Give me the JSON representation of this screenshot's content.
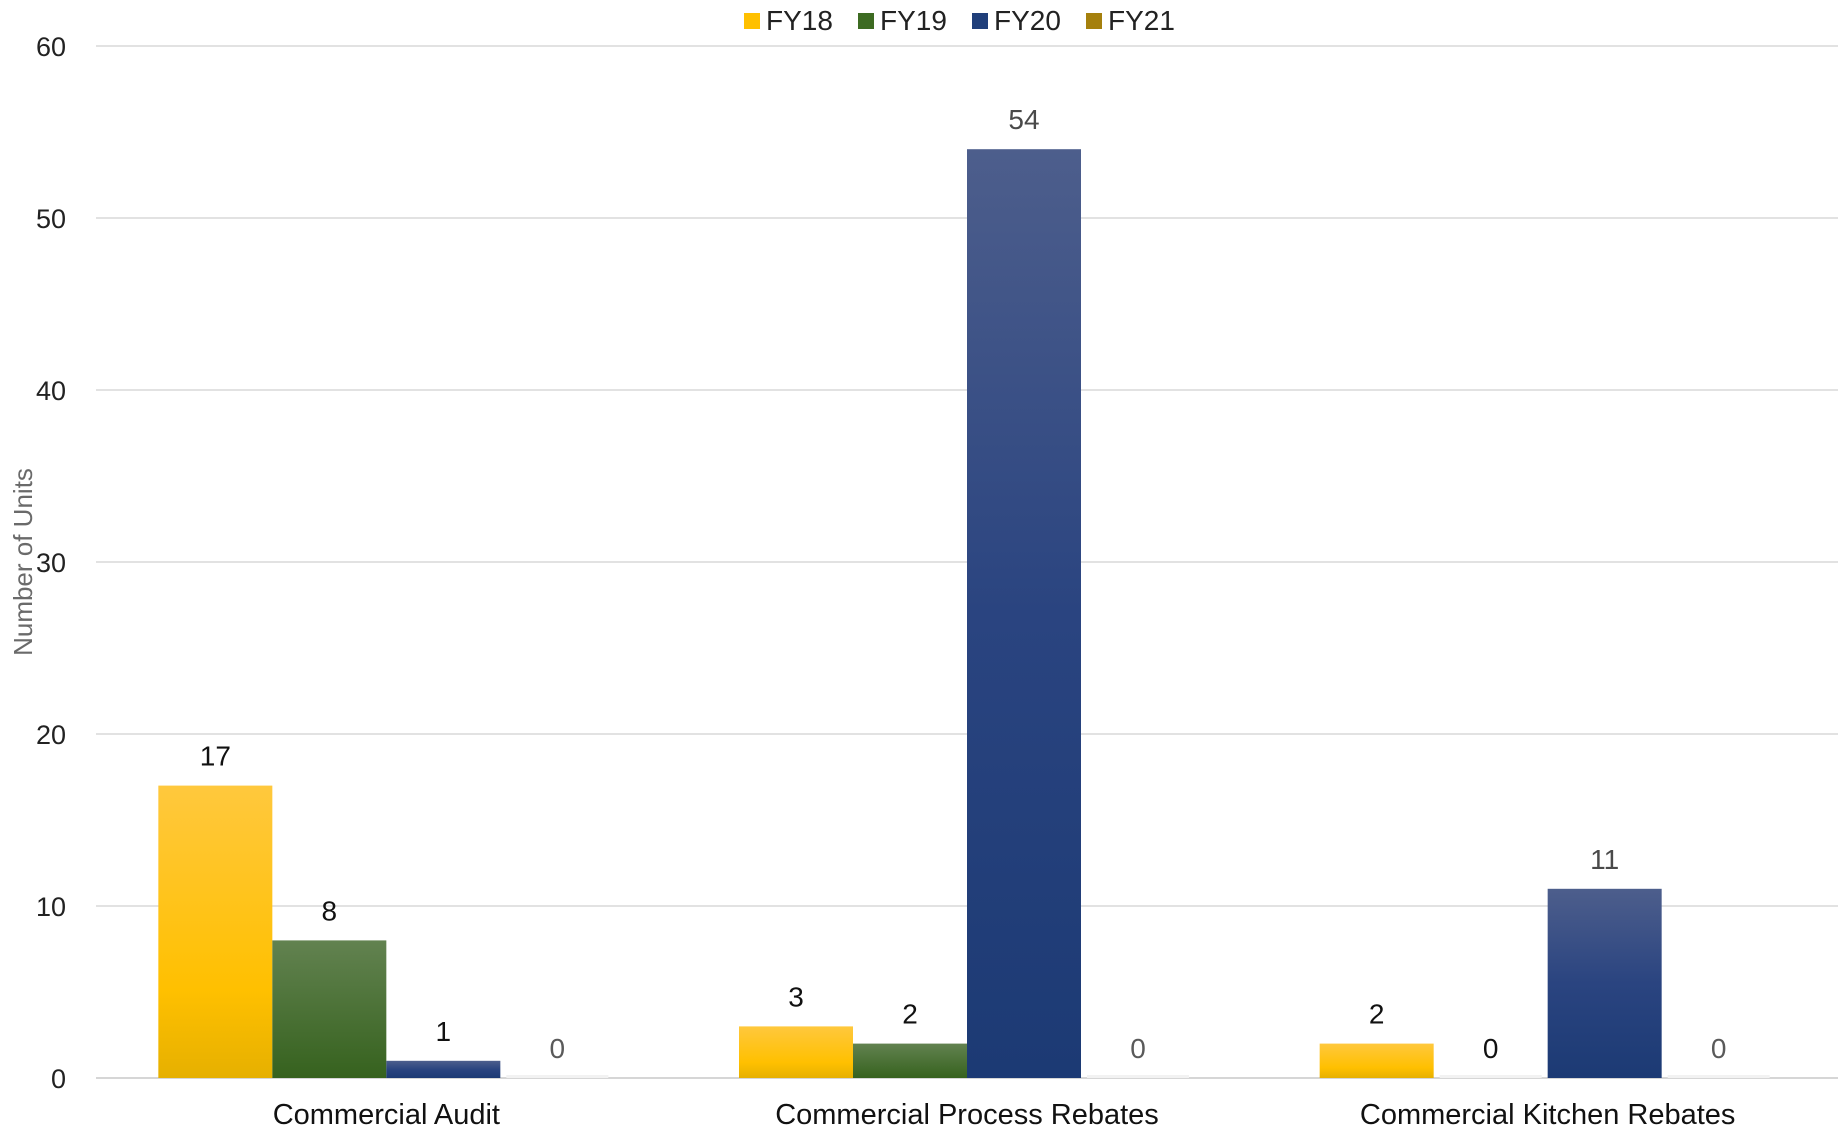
{
  "chart_data": {
    "type": "bar",
    "title": "",
    "xlabel": "",
    "ylabel": "Number of Units",
    "ylim": [
      0,
      60
    ],
    "yticks": [
      0,
      10,
      20,
      30,
      40,
      50,
      60
    ],
    "grid": true,
    "legend_position": "top-center",
    "categories": [
      "Commercial Audit",
      "Commercial Process Rebates",
      "Commercial Kitchen Rebates"
    ],
    "series": [
      {
        "name": "FY18",
        "values": [
          17,
          3,
          2
        ],
        "color": "#FFC000"
      },
      {
        "name": "FY19",
        "values": [
          8,
          2,
          0
        ],
        "color": "#3D6B22"
      },
      {
        "name": "FY20",
        "values": [
          1,
          54,
          11
        ],
        "color": "#203F7A"
      },
      {
        "name": "FY21",
        "values": [
          0,
          0,
          0
        ],
        "color": "#A5800D"
      }
    ],
    "data_labels": [
      [
        "17",
        "3",
        "2"
      ],
      [
        "8",
        "2",
        "0"
      ],
      [
        "1",
        "54",
        "11"
      ],
      [
        "0",
        "0",
        "0"
      ]
    ]
  }
}
